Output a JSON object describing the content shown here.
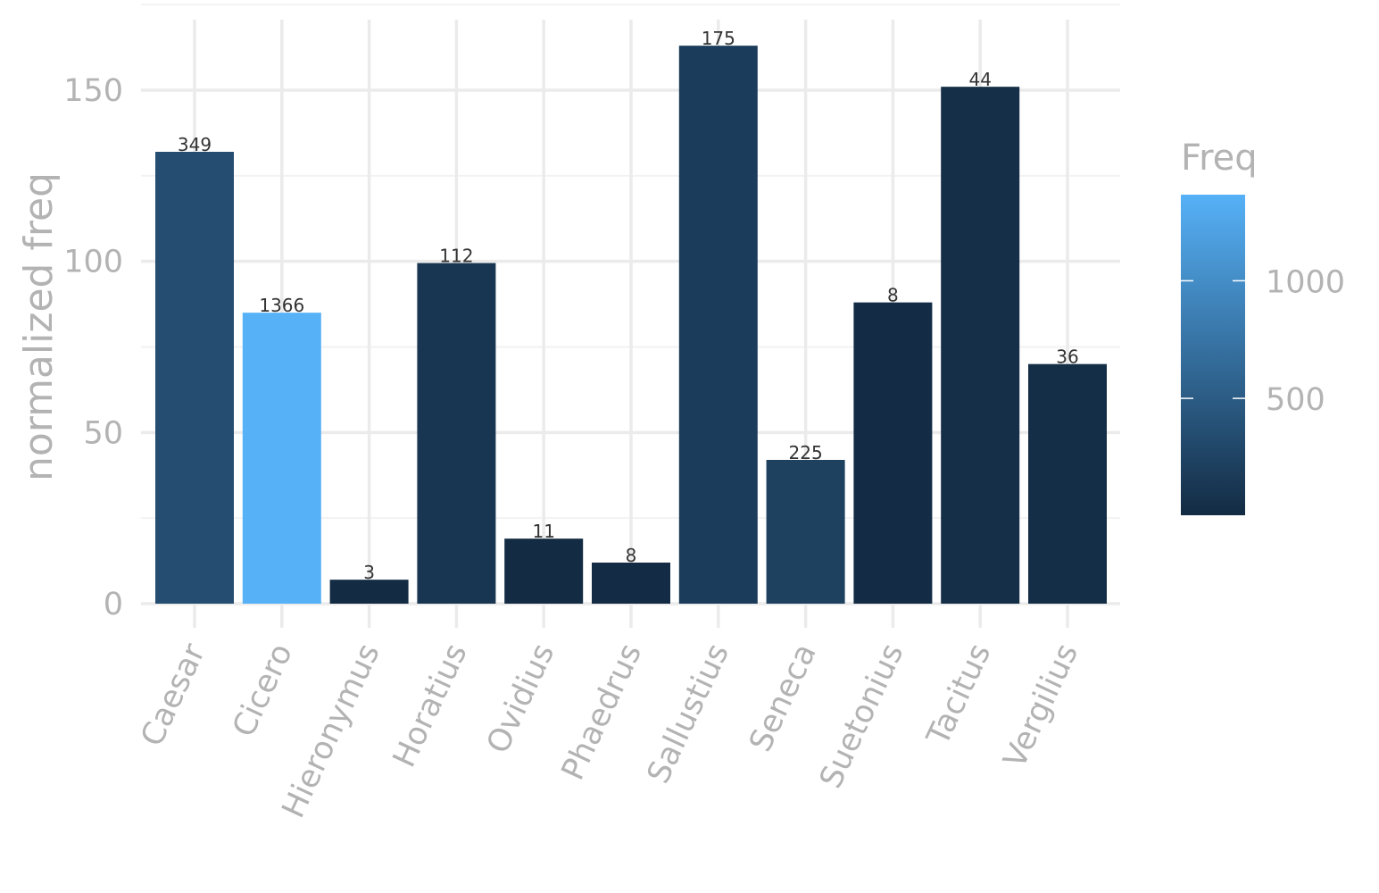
{
  "chart_data": {
    "type": "bar",
    "categories": [
      "Caesar",
      "Cicero",
      "Hieronymus",
      "Horatius",
      "Ovidius",
      "Phaedrus",
      "Sallustius",
      "Seneca",
      "Suetonius",
      "Tacitus",
      "Vergilius"
    ],
    "values": [
      132,
      85,
      7,
      99.5,
      19,
      12,
      163,
      42,
      88,
      151,
      70
    ],
    "freq": [
      349,
      1366,
      3,
      112,
      11,
      8,
      175,
      225,
      8,
      44,
      36
    ],
    "bar_labels": [
      "349",
      "1366",
      "3",
      "112",
      "11",
      "8",
      "175",
      "225",
      "8",
      "44",
      "36"
    ],
    "ylabel": "normalized freq",
    "xlabel": "",
    "ylim": [
      0,
      170
    ],
    "yticks": [
      0,
      50,
      100,
      150
    ],
    "ytick_labels": [
      "0",
      "50",
      "100",
      "150"
    ],
    "grid": true,
    "x_tick_rotation": "65deg",
    "legend": {
      "title": "Freq",
      "placement": "right",
      "type": "colorbar",
      "range": [
        3,
        1366
      ],
      "ticks": [
        500,
        1000
      ],
      "tick_labels": [
        "500",
        "1000"
      ],
      "color_low": "#132b43",
      "color_high": "#56b1f7"
    }
  }
}
